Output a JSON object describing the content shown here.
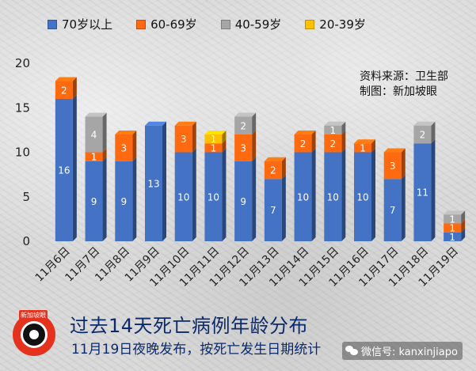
{
  "colors": {
    "age_70_plus": "#4472c4",
    "age_60_69": "#ff6a10",
    "age_40_59": "#a6a6a6",
    "age_20_39": "#ffc000"
  },
  "legend": [
    {
      "label": "70岁以上",
      "color": "#4472c4"
    },
    {
      "label": "60-69岁",
      "color": "#ff6a10"
    },
    {
      "label": "40-59岁",
      "color": "#a6a6a6"
    },
    {
      "label": "20-39岁",
      "color": "#ffc000"
    }
  ],
  "source": {
    "line1": "资料来源：卫生部",
    "line2": "制图：新加坡眼"
  },
  "footer": {
    "title": "过去14天死亡病例年龄分布",
    "subtitle": "11月19日夜晚发布，按死亡发生日期统计"
  },
  "logo": {
    "label": "新加坡眼",
    "icon": "camera-lens-icon"
  },
  "watermark": {
    "icon": "wechat-icon",
    "text": "微信号: kanxinjiapo"
  },
  "chart_data": {
    "type": "bar",
    "stacked": true,
    "categories": [
      "11月6日",
      "11月7日",
      "11月8日",
      "11月9日",
      "11月10日",
      "11月11日",
      "11月12日",
      "11月13日",
      "11月14日",
      "11月15日",
      "11月16日",
      "11月17日",
      "11月18日",
      "11月19日"
    ],
    "series": [
      {
        "name": "70岁以上",
        "color": "#4472c4",
        "values": [
          16,
          9,
          9,
          13,
          10,
          10,
          9,
          7,
          10,
          10,
          10,
          7,
          11,
          1
        ]
      },
      {
        "name": "60-69岁",
        "color": "#ff6a10",
        "values": [
          2,
          1,
          3,
          0,
          3,
          1,
          3,
          2,
          2,
          2,
          1,
          3,
          0,
          1
        ]
      },
      {
        "name": "40-59岁",
        "color": "#a6a6a6",
        "values": [
          0,
          4,
          0,
          0,
          0,
          0,
          2,
          0,
          0,
          1,
          0,
          0,
          2,
          1
        ]
      },
      {
        "name": "20-39岁",
        "color": "#ffc000",
        "values": [
          0,
          0,
          0,
          0,
          0,
          1,
          0,
          0,
          0,
          0,
          0,
          0,
          0,
          0
        ]
      }
    ],
    "yticks": [
      "0",
      "5",
      "10",
      "15",
      "20"
    ],
    "ylim": [
      0,
      20
    ],
    "grid": false,
    "legend_position": "top",
    "data_labels": true
  }
}
